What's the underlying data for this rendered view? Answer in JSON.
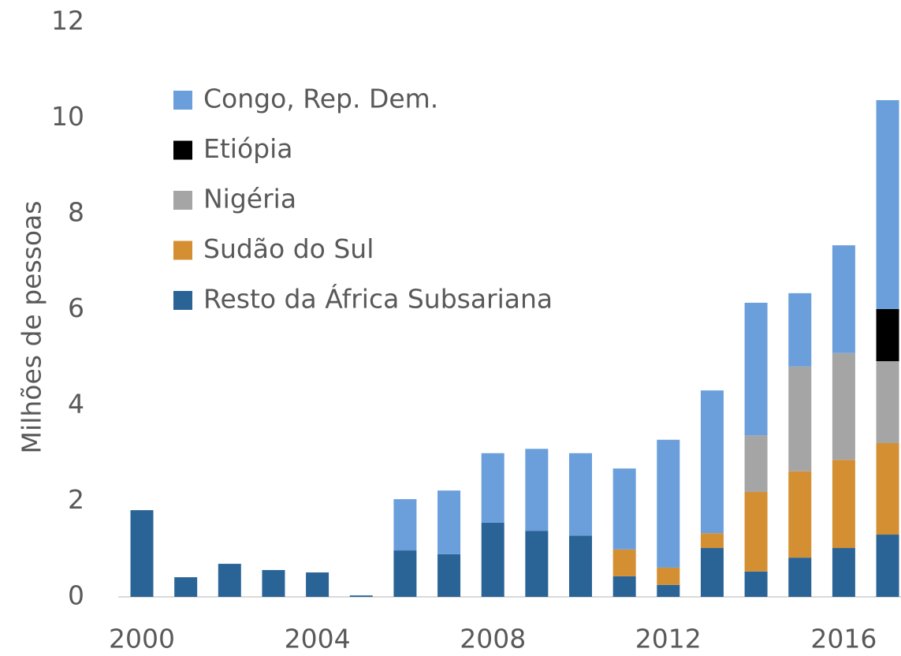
{
  "chart_data": {
    "type": "stacked_bar",
    "y_label": "Milhões de pessoas",
    "categories": [
      "2000",
      null,
      null,
      null,
      "2004",
      null,
      null,
      null,
      "2008",
      null,
      null,
      null,
      "2012",
      null,
      null,
      null,
      "2016",
      null
    ],
    "series": [
      {
        "name": "Resto da África Subsariana",
        "color": "#2a6497",
        "values": [
          1.81,
          0.41,
          0.69,
          0.56,
          0.51,
          0.03,
          0.97,
          0.89,
          1.55,
          1.38,
          1.28,
          0.43,
          0.25,
          1.02,
          0.53,
          0.82,
          1.02,
          1.3
        ]
      },
      {
        "name": "Sudão do Sul",
        "color": "#d48f33",
        "values": [
          0,
          0,
          0,
          0,
          0,
          0,
          0,
          0,
          0,
          0,
          0,
          0.56,
          0.36,
          0.31,
          1.66,
          1.8,
          1.84,
          1.91
        ]
      },
      {
        "name": "Nigéria",
        "color": "#a5a5a5",
        "values": [
          0,
          0,
          0,
          0,
          0,
          0,
          0,
          0,
          0,
          0,
          0,
          0,
          0,
          0,
          1.18,
          2.19,
          2.23,
          1.71
        ]
      },
      {
        "name": "Etiópia",
        "color": "#000000",
        "values": [
          0,
          0,
          0,
          0,
          0,
          0,
          0,
          0,
          0,
          0,
          0,
          0,
          0,
          0,
          0,
          0,
          0,
          1.09
        ]
      },
      {
        "name": "Congo, Rep. Dem.",
        "color": "#6a9fdb",
        "values": [
          0,
          0,
          0,
          0,
          0,
          0,
          1.07,
          1.33,
          1.45,
          1.71,
          1.72,
          1.69,
          2.67,
          2.98,
          2.77,
          1.53,
          2.25,
          4.36
        ]
      }
    ],
    "ylim": [
      0,
      12
    ],
    "yticks": [
      0,
      2,
      4,
      6,
      8,
      10,
      12
    ]
  }
}
